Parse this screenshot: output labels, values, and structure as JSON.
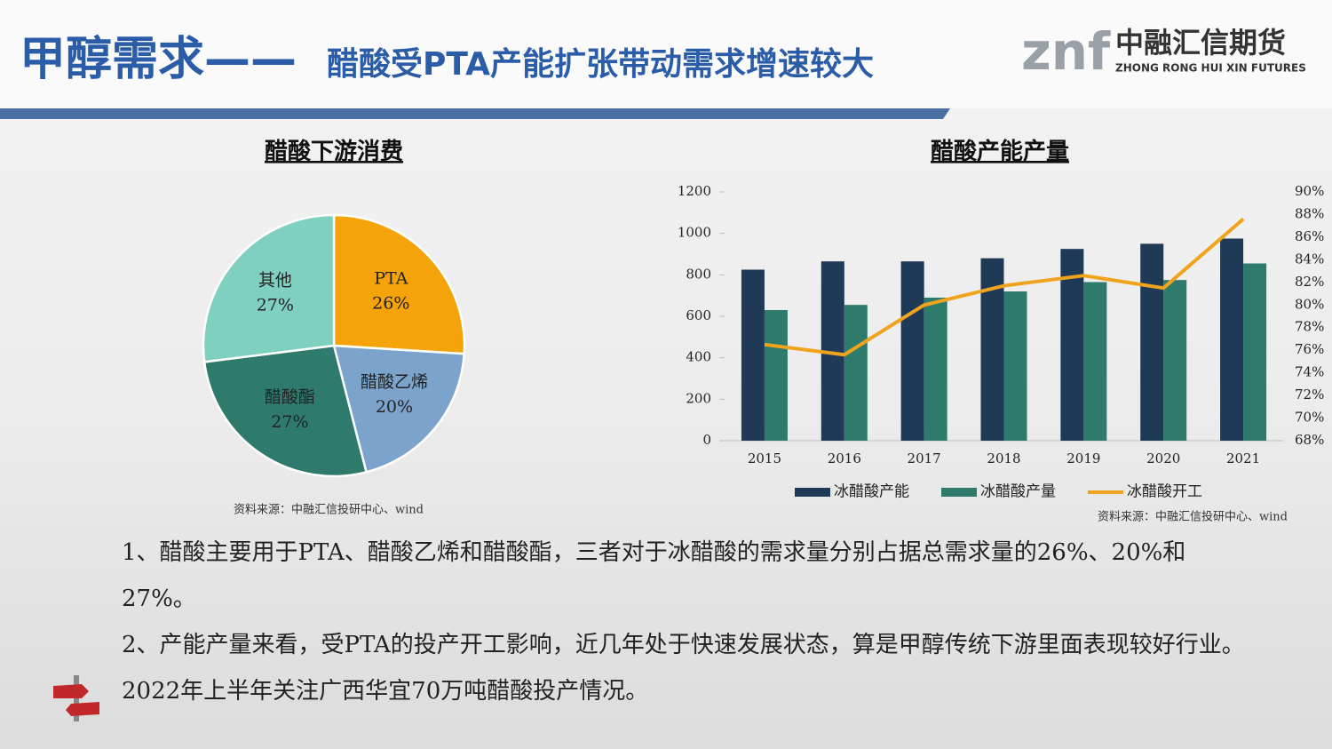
{
  "header": {
    "title_main": "甲醇需求——",
    "title_sub": "醋酸受PTA产能扩张带动需求增速较大"
  },
  "logo": {
    "mark": "znf",
    "name": "中融汇信期货",
    "name_en": "ZHONG RONG HUI XIN FUTURES"
  },
  "chart_data": [
    {
      "type": "pie",
      "title": "醋酸下游消费",
      "categories": [
        "PTA",
        "醋酸乙烯",
        "醋酸酯",
        "其他"
      ],
      "values": [
        26,
        20,
        27,
        27
      ],
      "value_labels": [
        "26%",
        "20%",
        "27%",
        "27%"
      ],
      "colors": [
        "#f5a30a",
        "#7ba3cc",
        "#2e7b6e",
        "#7fd0c0"
      ],
      "source": "资料来源：中融汇信投研中心、wind"
    },
    {
      "type": "bar",
      "title": "醋酸产能产量",
      "categories": [
        "2015",
        "2016",
        "2017",
        "2018",
        "2019",
        "2020",
        "2021"
      ],
      "series": [
        {
          "name": "冰醋酸产能",
          "color": "#1f3a56",
          "values": [
            825,
            865,
            865,
            880,
            925,
            950,
            975
          ]
        },
        {
          "name": "冰醋酸产量",
          "color": "#2e7b6e",
          "values": [
            630,
            655,
            690,
            720,
            765,
            775,
            855
          ]
        },
        {
          "name": "冰醋酸开工",
          "color": "#f0a31c",
          "type": "line",
          "axis": "y2",
          "values": [
            76.5,
            75.6,
            80.0,
            81.7,
            82.6,
            81.5,
            87.6
          ]
        }
      ],
      "ylim": [
        0,
        1200
      ],
      "yticks": [
        0,
        200,
        400,
        600,
        800,
        1000,
        1200
      ],
      "y2lim": [
        68,
        90
      ],
      "y2ticks": [
        {
          "value": 68,
          "label": "68%"
        },
        {
          "value": 70,
          "label": "70%"
        },
        {
          "value": 72,
          "label": "72%"
        },
        {
          "value": 74,
          "label": "74%"
        },
        {
          "value": 76,
          "label": "76%"
        },
        {
          "value": 78,
          "label": "78%"
        },
        {
          "value": 80,
          "label": "80%"
        },
        {
          "value": 82,
          "label": "82%"
        },
        {
          "value": 84,
          "label": "84%"
        },
        {
          "value": 86,
          "label": "86%"
        },
        {
          "value": 88,
          "label": "88%"
        },
        {
          "value": 90,
          "label": "90%"
        }
      ],
      "legend": "bottom",
      "source": "资料来源：中融汇信投研中心、wind"
    }
  ],
  "paragraphs": [
    "1、醋酸主要用于PTA、醋酸乙烯和醋酸酯，三者对于冰醋酸的需求量分别占据总需求量的26%、20%和27%。",
    "2、产能产量来看，受PTA的投产开工影响，近几年处于快速发展状态，算是甲醇传统下游里面表现较好行业。2022年上半年关注广西华宜70万吨醋酸投产情况。"
  ]
}
